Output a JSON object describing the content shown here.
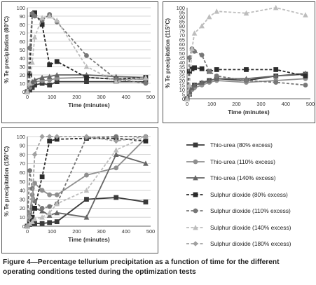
{
  "caption": {
    "line1": "Figure 4—Percentage tellurium precipitation as a function of time for the different",
    "line2": "operating conditions tested during the optimization tests"
  },
  "series_styles": [
    {
      "name": "Thio-urea (80% excess)",
      "color": "#3a3a3a",
      "dash": "solid",
      "marker": "square"
    },
    {
      "name": "Thio-urea (110% excess)",
      "color": "#8f8f8f",
      "dash": "solid",
      "marker": "circle"
    },
    {
      "name": "Thio-urea (140% excess)",
      "color": "#666666",
      "dash": "solid",
      "marker": "triangle"
    },
    {
      "name": "Sulphur dioxide (80% excess)",
      "color": "#2b2b2b",
      "dash": "dashed",
      "marker": "square"
    },
    {
      "name": "Sulphur dioxide (110% excess)",
      "color": "#777777",
      "dash": "dashed",
      "marker": "circle"
    },
    {
      "name": "Sulphur dioxide (140% excess)",
      "color": "#bdbdbd",
      "dash": "dashed",
      "marker": "triangle"
    },
    {
      "name": "Sulphur dioxide (180% excess)",
      "color": "#a0a0a0",
      "dash": "dashed",
      "marker": "diamond"
    }
  ],
  "chart_data": [
    {
      "id": "80",
      "type": "line",
      "xlabel": "Time (minutes)",
      "ylabel": "% Te precipitation (80°C)",
      "xlim": [
        0,
        500
      ],
      "ylim": [
        0,
        100
      ],
      "xticks": [
        0,
        100,
        200,
        300,
        400,
        500
      ],
      "yticks": [
        0,
        10,
        20,
        30,
        40,
        50,
        60,
        70,
        80,
        90,
        100
      ],
      "grid": true,
      "series": [
        {
          "name": "Thio-urea (80% excess)",
          "x": [
            0,
            10,
            20,
            30,
            60,
            90,
            120,
            240,
            360,
            480
          ],
          "y": [
            0,
            2,
            5,
            8,
            10,
            8,
            12,
            12,
            12,
            12
          ]
        },
        {
          "name": "Thio-urea (110% excess)",
          "x": [
            0,
            10,
            20,
            30,
            60,
            90,
            120,
            240,
            360,
            480
          ],
          "y": [
            0,
            5,
            10,
            12,
            13,
            14,
            16,
            17,
            15,
            15
          ]
        },
        {
          "name": "Thio-urea (140% excess)",
          "x": [
            0,
            10,
            20,
            30,
            60,
            90,
            120,
            240,
            360,
            480
          ],
          "y": [
            0,
            8,
            12,
            14,
            17,
            18,
            20,
            20,
            18,
            17
          ]
        },
        {
          "name": "Sulphur dioxide (80% excess)",
          "x": [
            0,
            10,
            20,
            30,
            60,
            90,
            120,
            240,
            360,
            480
          ],
          "y": [
            0,
            20,
            92,
            94,
            80,
            32,
            36,
            17,
            15,
            17
          ]
        },
        {
          "name": "Sulphur dioxide (110% excess)",
          "x": [
            0,
            10,
            20,
            30,
            60,
            90,
            120,
            240,
            360,
            480
          ],
          "y": [
            0,
            52,
            93,
            90,
            85,
            92,
            83,
            43,
            15,
            10
          ]
        },
        {
          "name": "Sulphur dioxide (140% excess)",
          "x": [
            0,
            10,
            20,
            30,
            60,
            90,
            120,
            240,
            360,
            480
          ],
          "y": [
            0,
            10,
            35,
            65,
            88,
            90,
            85,
            30,
            12,
            17
          ]
        }
      ]
    },
    {
      "id": "115",
      "type": "line",
      "xlabel": "Time (minutes)",
      "ylabel": "% Te precipitation (115°C)",
      "xlim": [
        0,
        500
      ],
      "ylim": [
        0,
        100
      ],
      "xticks": [
        0,
        100,
        200,
        300,
        400,
        500
      ],
      "yticks": [
        0,
        5,
        10,
        15,
        20,
        25,
        30,
        35,
        40,
        45,
        50,
        55,
        60,
        65,
        70,
        75,
        80,
        85,
        90,
        95,
        100
      ],
      "grid": false,
      "series": [
        {
          "name": "Thio-urea (80% excess)",
          "x": [
            0,
            10,
            20,
            30,
            60,
            90,
            120,
            240,
            360,
            480
          ],
          "y": [
            0,
            5,
            12,
            15,
            17,
            20,
            22,
            20,
            25,
            27
          ]
        },
        {
          "name": "Thio-urea (110% excess)",
          "x": [
            0,
            10,
            20,
            30,
            60,
            90,
            120,
            240,
            360,
            480
          ],
          "y": [
            0,
            5,
            10,
            12,
            15,
            18,
            20,
            18,
            20,
            22
          ]
        },
        {
          "name": "Thio-urea (140% excess)",
          "x": [
            0,
            10,
            20,
            30,
            60,
            90,
            120,
            240,
            360,
            480
          ],
          "y": [
            0,
            8,
            12,
            15,
            18,
            20,
            22,
            22,
            25,
            28
          ]
        },
        {
          "name": "Sulphur dioxide (80% excess)",
          "x": [
            0,
            10,
            20,
            30,
            60,
            90,
            120,
            240,
            360,
            480
          ],
          "y": [
            0,
            30,
            33,
            34,
            33,
            30,
            32,
            32,
            32,
            25
          ]
        },
        {
          "name": "Sulphur dioxide (110% excess)",
          "x": [
            0,
            10,
            20,
            30,
            60,
            90,
            120,
            240,
            360,
            480
          ],
          "y": [
            0,
            45,
            55,
            52,
            48,
            30,
            25,
            20,
            18,
            15
          ]
        },
        {
          "name": "Sulphur dioxide (140% excess)",
          "x": [
            0,
            10,
            20,
            30,
            60,
            90,
            120,
            240,
            360,
            480
          ],
          "y": [
            0,
            15,
            55,
            72,
            80,
            90,
            96,
            94,
            100,
            92
          ]
        }
      ]
    },
    {
      "id": "150",
      "type": "line",
      "xlabel": "Time (minutes)",
      "ylabel": "% Te precipitation (150°C)",
      "xlim": [
        0,
        500
      ],
      "ylim": [
        0,
        100
      ],
      "xticks": [
        0,
        100,
        200,
        300,
        400,
        500
      ],
      "yticks": [
        0,
        10,
        20,
        30,
        40,
        50,
        60,
        70,
        80,
        90,
        100
      ],
      "grid": true,
      "series": [
        {
          "name": "Thio-urea (80% excess)",
          "x": [
            0,
            10,
            20,
            30,
            60,
            90,
            120,
            240,
            360,
            480
          ],
          "y": [
            0,
            2,
            3,
            3,
            3,
            4,
            5,
            30,
            32,
            27
          ]
        },
        {
          "name": "Thio-urea (110% excess)",
          "x": [
            0,
            10,
            20,
            30,
            60,
            90,
            120,
            240,
            360,
            480
          ],
          "y": [
            0,
            15,
            35,
            48,
            40,
            35,
            35,
            57,
            65,
            98
          ]
        },
        {
          "name": "Thio-urea (140% excess)",
          "x": [
            0,
            10,
            20,
            30,
            60,
            90,
            120,
            240,
            360,
            480
          ],
          "y": [
            0,
            5,
            22,
            20,
            17,
            12,
            15,
            10,
            80,
            70
          ]
        },
        {
          "name": "Sulphur dioxide (80% excess)",
          "x": [
            0,
            10,
            20,
            30,
            60,
            90,
            120,
            240,
            360,
            480
          ],
          "y": [
            0,
            5,
            10,
            20,
            55,
            95,
            97,
            98,
            98,
            95
          ]
        },
        {
          "name": "Sulphur dioxide (110% excess)",
          "x": [
            0,
            10,
            20,
            30,
            60,
            90,
            120,
            240,
            360,
            480
          ],
          "y": [
            0,
            62,
            42,
            28,
            20,
            22,
            25,
            99,
            100,
            100
          ]
        },
        {
          "name": "Sulphur dioxide (140% excess)",
          "x": [
            0,
            10,
            20,
            30,
            60,
            90,
            120,
            240,
            360,
            480
          ],
          "y": [
            0,
            3,
            5,
            8,
            10,
            15,
            25,
            40,
            85,
            100
          ]
        },
        {
          "name": "Sulphur dioxide (180% excess)",
          "x": [
            0,
            10,
            20,
            30,
            60,
            90,
            120,
            240,
            360,
            480
          ],
          "y": [
            0,
            10,
            30,
            80,
            100,
            100,
            100,
            100,
            95,
            100
          ]
        }
      ]
    }
  ]
}
